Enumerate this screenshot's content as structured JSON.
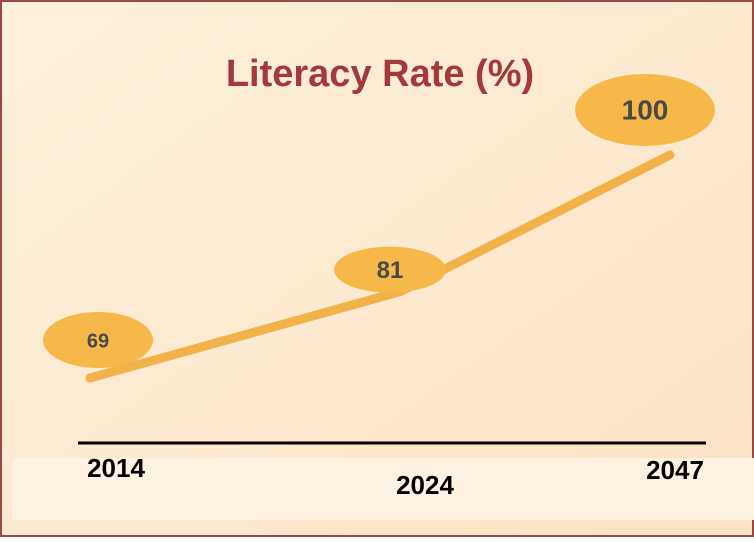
{
  "chart_data": {
    "type": "line",
    "title": "Literacy Rate (%)",
    "categories": [
      "2014",
      "2024",
      "2047"
    ],
    "values": [
      69,
      81,
      100
    ],
    "color": "#f2b24a"
  }
}
